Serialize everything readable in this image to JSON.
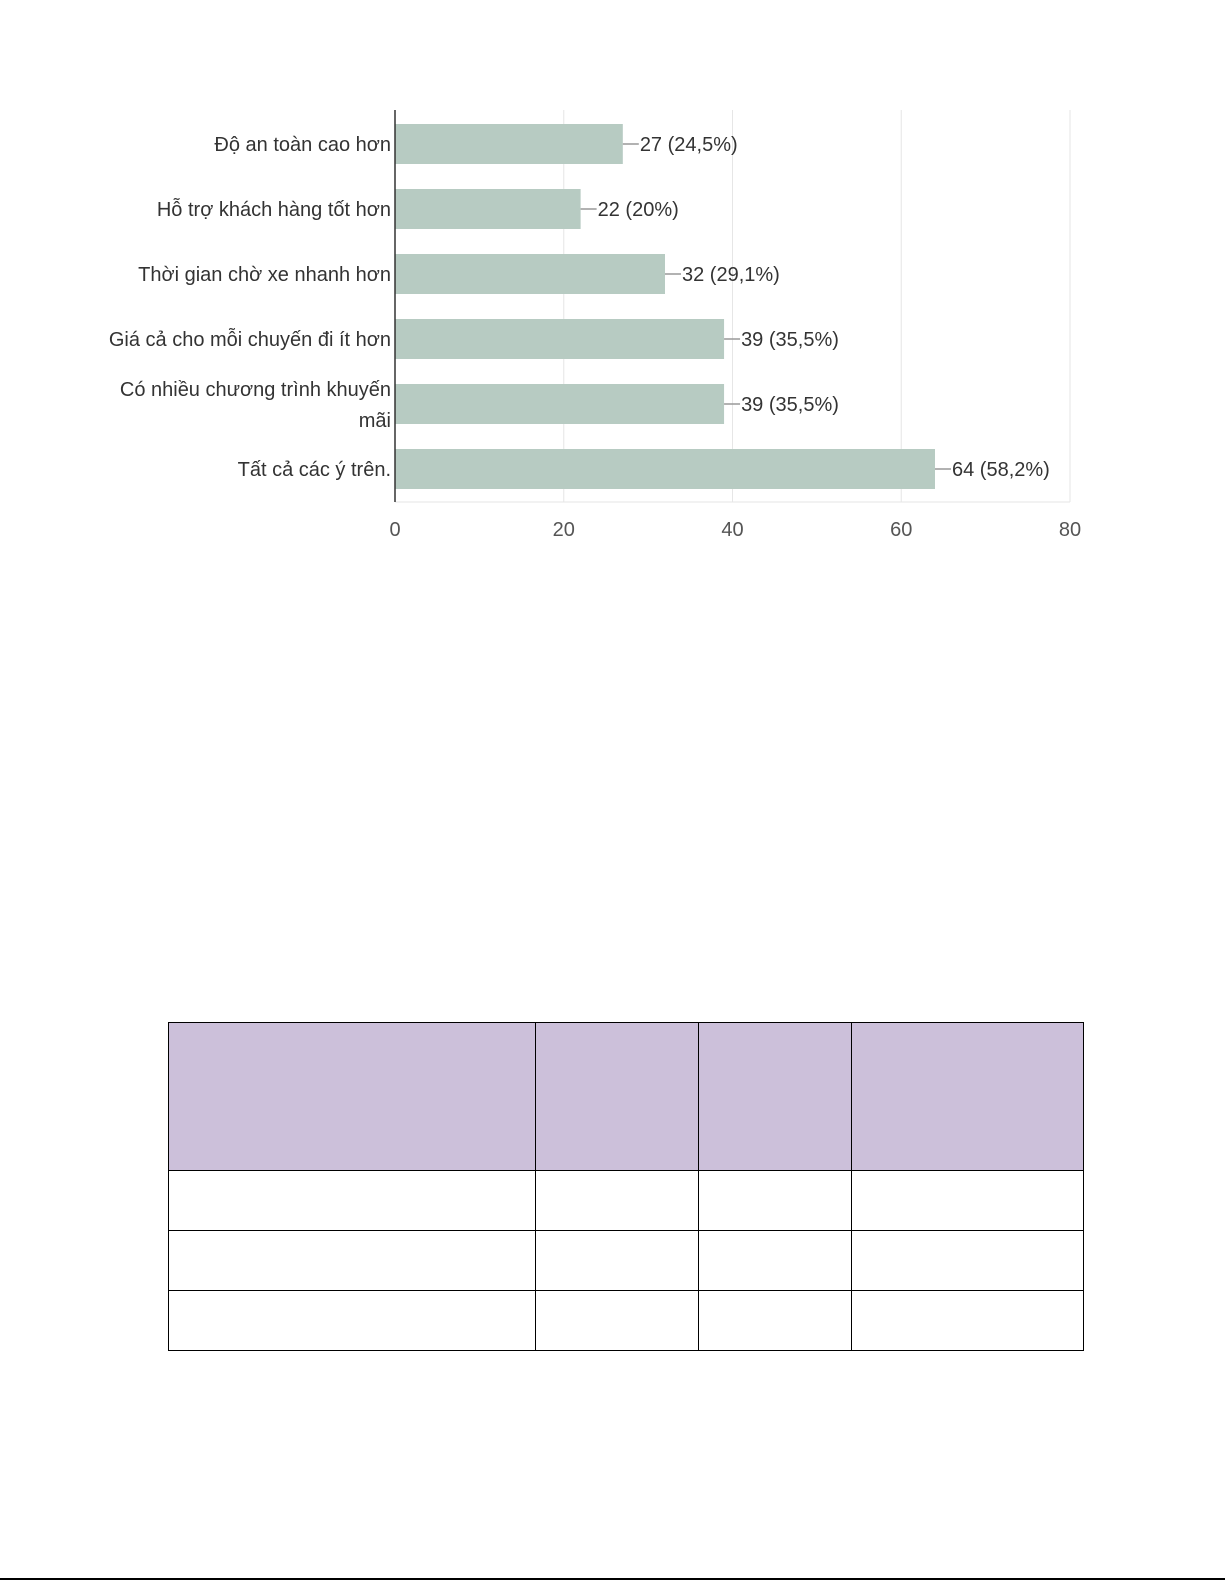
{
  "chart_data": {
    "type": "bar",
    "orientation": "horizontal",
    "categories": [
      "Độ an toàn cao hơn",
      "Hỗ trợ khách hàng tốt hơn",
      "Thời gian chờ xe nhanh hơn",
      "Giá cả cho mỗi chuyến đi ít hơn",
      "Có nhiều chương trình khuyến mãi",
      "Tất cả các ý trên."
    ],
    "values": [
      27,
      22,
      32,
      39,
      39,
      64
    ],
    "data_labels": [
      "27 (24,5%)",
      "22 (20%)",
      "32 (29,1%)",
      "39 (35,5%)",
      "39 (35,5%)",
      "64 (58,2%)"
    ],
    "xlim": [
      0,
      80
    ],
    "xticks": [
      0,
      20,
      40,
      60,
      80
    ],
    "grid": true,
    "bar_color": "#b7cbc2",
    "gridline_color": "#e6e6e6",
    "title": "",
    "xlabel": "",
    "ylabel": ""
  },
  "table": {
    "header_color": "#ccc0da",
    "columns": [
      "",
      "",
      "",
      ""
    ],
    "rows": [
      [
        "",
        "",
        "",
        ""
      ],
      [
        "",
        "",
        "",
        ""
      ],
      [
        "",
        "",
        "",
        ""
      ]
    ]
  }
}
